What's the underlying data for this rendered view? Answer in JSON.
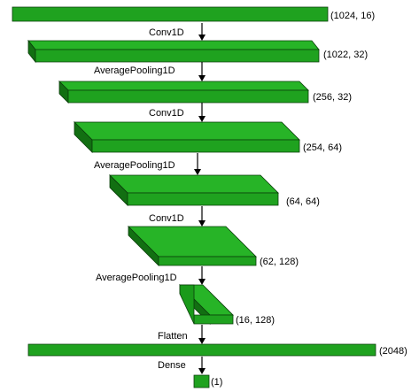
{
  "layers": [
    {
      "shape": "(1024, 16)"
    },
    {
      "shape": "(1022, 32)"
    },
    {
      "shape": "(256, 32)"
    },
    {
      "shape": "(254, 64)"
    },
    {
      "shape": "(64, 64)"
    },
    {
      "shape": "(62, 128)"
    },
    {
      "shape": "(16, 128)"
    },
    {
      "shape": "(2048)"
    },
    {
      "shape": "(1)"
    }
  ],
  "operations": [
    {
      "label": "Conv1D"
    },
    {
      "label": "AveragePooling1D"
    },
    {
      "label": "Conv1D"
    },
    {
      "label": "AveragePooling1D"
    },
    {
      "label": "Conv1D"
    },
    {
      "label": "AveragePooling1D"
    },
    {
      "label": "Flatten"
    },
    {
      "label": "Dense"
    }
  ],
  "colors": {
    "block": "#1fa21f",
    "outline": "#0a3d0a",
    "text": "#000000"
  }
}
